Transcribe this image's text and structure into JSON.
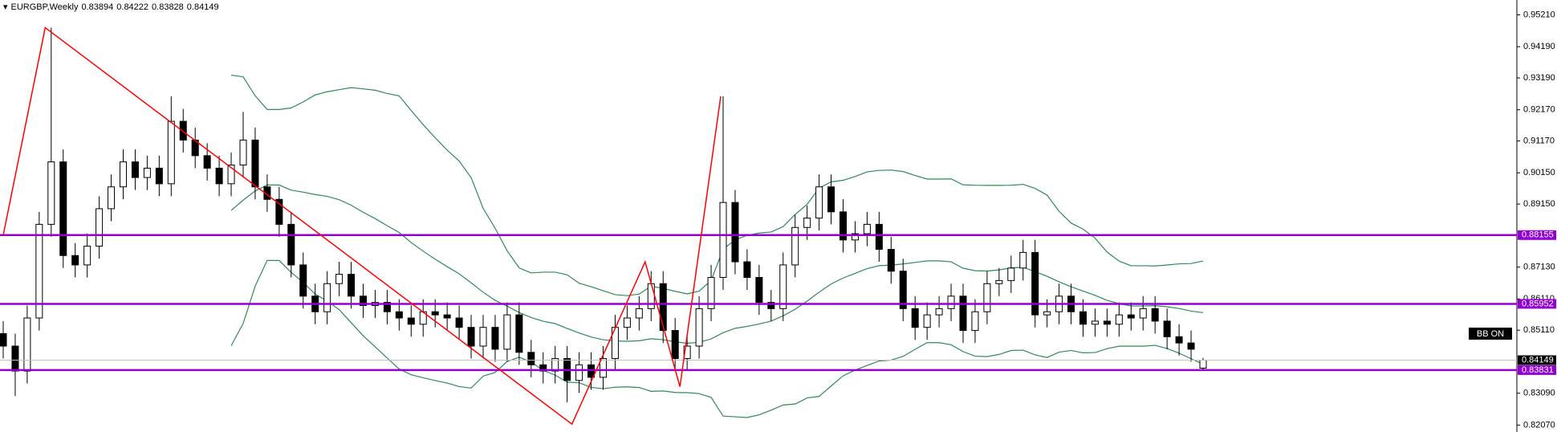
{
  "chart_data": {
    "type": "candlestick",
    "title": "EURGBP,Weekly",
    "open": [
      0.85,
      0.846,
      0.838,
      0.855,
      0.885,
      0.905,
      0.875,
      0.872,
      0.878,
      0.89,
      0.897,
      0.905,
      0.9,
      0.903,
      0.898,
      0.918,
      0.912,
      0.907,
      0.903,
      0.898,
      0.904,
      0.912,
      0.897,
      0.893,
      0.885,
      0.872,
      0.862,
      0.857,
      0.866,
      0.869,
      0.862,
      0.859,
      0.86,
      0.857,
      0.855,
      0.853,
      0.857,
      0.856,
      0.855,
      0.852,
      0.846,
      0.852,
      0.845,
      0.856,
      0.844,
      0.84,
      0.838,
      0.842,
      0.835,
      0.84,
      0.836,
      0.842,
      0.852,
      0.855,
      0.858,
      0.866,
      0.851,
      0.842,
      0.846,
      0.858,
      0.868,
      0.892,
      0.873,
      0.868,
      0.86,
      0.858,
      0.872,
      0.884,
      0.887,
      0.897,
      0.889,
      0.88,
      0.882,
      0.885,
      0.877,
      0.87,
      0.858,
      0.852,
      0.856,
      0.858,
      0.862,
      0.851,
      0.857,
      0.866,
      0.867,
      0.871,
      0.876,
      0.856,
      0.857,
      0.862,
      0.857,
      0.853,
      0.854,
      0.853,
      0.856,
      0.855,
      0.858,
      0.854,
      0.849,
      0.847,
      0.83894
    ],
    "high": [
      0.854,
      0.85,
      0.859,
      0.889,
      0.948,
      0.909,
      0.879,
      0.882,
      0.894,
      0.901,
      0.909,
      0.909,
      0.907,
      0.907,
      0.926,
      0.922,
      0.916,
      0.911,
      0.907,
      0.908,
      0.921,
      0.916,
      0.901,
      0.897,
      0.889,
      0.876,
      0.866,
      0.87,
      0.873,
      0.873,
      0.866,
      0.864,
      0.864,
      0.861,
      0.859,
      0.861,
      0.861,
      0.86,
      0.859,
      0.856,
      0.856,
      0.856,
      0.86,
      0.86,
      0.848,
      0.844,
      0.846,
      0.846,
      0.844,
      0.844,
      0.846,
      0.856,
      0.859,
      0.862,
      0.87,
      0.87,
      0.855,
      0.85,
      0.862,
      0.872,
      0.926,
      0.896,
      0.877,
      0.872,
      0.864,
      0.876,
      0.888,
      0.891,
      0.901,
      0.901,
      0.893,
      0.886,
      0.889,
      0.889,
      0.881,
      0.874,
      0.862,
      0.86,
      0.862,
      0.866,
      0.866,
      0.861,
      0.87,
      0.871,
      0.875,
      0.88,
      0.88,
      0.861,
      0.866,
      0.866,
      0.861,
      0.858,
      0.858,
      0.86,
      0.86,
      0.862,
      0.862,
      0.858,
      0.853,
      0.851,
      0.84222
    ],
    "low": [
      0.842,
      0.83,
      0.834,
      0.851,
      0.881,
      0.871,
      0.868,
      0.868,
      0.874,
      0.886,
      0.893,
      0.896,
      0.896,
      0.894,
      0.894,
      0.908,
      0.903,
      0.899,
      0.894,
      0.894,
      0.9,
      0.893,
      0.889,
      0.881,
      0.868,
      0.858,
      0.853,
      0.853,
      0.862,
      0.858,
      0.855,
      0.855,
      0.853,
      0.851,
      0.849,
      0.849,
      0.852,
      0.851,
      0.848,
      0.842,
      0.842,
      0.841,
      0.841,
      0.84,
      0.836,
      0.834,
      0.834,
      0.828,
      0.831,
      0.832,
      0.832,
      0.838,
      0.848,
      0.851,
      0.854,
      0.847,
      0.838,
      0.838,
      0.842,
      0.854,
      0.864,
      0.869,
      0.864,
      0.856,
      0.854,
      0.854,
      0.868,
      0.88,
      0.883,
      0.885,
      0.876,
      0.876,
      0.878,
      0.873,
      0.866,
      0.854,
      0.848,
      0.848,
      0.852,
      0.854,
      0.847,
      0.847,
      0.853,
      0.862,
      0.863,
      0.867,
      0.852,
      0.852,
      0.853,
      0.853,
      0.849,
      0.849,
      0.849,
      0.849,
      0.851,
      0.851,
      0.85,
      0.845,
      0.843,
      0.841,
      0.83828
    ],
    "close": [
      0.846,
      0.838,
      0.855,
      0.885,
      0.905,
      0.875,
      0.872,
      0.878,
      0.89,
      0.897,
      0.905,
      0.9,
      0.903,
      0.898,
      0.918,
      0.912,
      0.907,
      0.903,
      0.898,
      0.904,
      0.912,
      0.897,
      0.893,
      0.885,
      0.872,
      0.862,
      0.857,
      0.866,
      0.869,
      0.862,
      0.859,
      0.86,
      0.857,
      0.855,
      0.853,
      0.857,
      0.856,
      0.855,
      0.852,
      0.846,
      0.852,
      0.845,
      0.856,
      0.844,
      0.84,
      0.838,
      0.842,
      0.835,
      0.84,
      0.836,
      0.842,
      0.852,
      0.855,
      0.858,
      0.866,
      0.851,
      0.842,
      0.846,
      0.858,
      0.868,
      0.892,
      0.873,
      0.868,
      0.86,
      0.858,
      0.872,
      0.884,
      0.887,
      0.897,
      0.889,
      0.88,
      0.882,
      0.885,
      0.877,
      0.87,
      0.858,
      0.852,
      0.856,
      0.858,
      0.862,
      0.851,
      0.857,
      0.866,
      0.867,
      0.871,
      0.876,
      0.856,
      0.857,
      0.862,
      0.857,
      0.853,
      0.854,
      0.853,
      0.856,
      0.855,
      0.858,
      0.854,
      0.849,
      0.847,
      0.845,
      0.84149
    ],
    "ylim": [
      0.81848,
      0.95686
    ],
    "yticks": [
      {
        "value": 0.9521,
        "label": "0.95210"
      },
      {
        "value": 0.9419,
        "label": "0.94190"
      },
      {
        "value": 0.9319,
        "label": "0.93190"
      },
      {
        "value": 0.9217,
        "label": "0.92170"
      },
      {
        "value": 0.9117,
        "label": "0.91170"
      },
      {
        "value": 0.9015,
        "label": "0.90150"
      },
      {
        "value": 0.8915,
        "label": "0.89150"
      },
      {
        "value": 0.8713,
        "label": "0.87130"
      },
      {
        "value": 0.8611,
        "label": "0.86110"
      },
      {
        "value": 0.8511,
        "label": "0.85110"
      },
      {
        "value": 0.8309,
        "label": "0.83090"
      },
      {
        "value": 0.8207,
        "label": "0.82070"
      }
    ],
    "levels": [
      {
        "value": 0.88155,
        "color": "#9400d3"
      },
      {
        "value": 0.85952,
        "color": "#9400d3"
      },
      {
        "value": 0.83831,
        "color": "#9400d3"
      }
    ],
    "zigzag": {
      "color": "#ff0000",
      "x": [
        0,
        3.5,
        47.4,
        53.5,
        56.4,
        59.8
      ],
      "y": [
        0.8815,
        0.948,
        0.821,
        0.873,
        0.833,
        0.926
      ]
    },
    "bands_color": "#2e8b57",
    "indicator_label": "BB ON"
  }
}
